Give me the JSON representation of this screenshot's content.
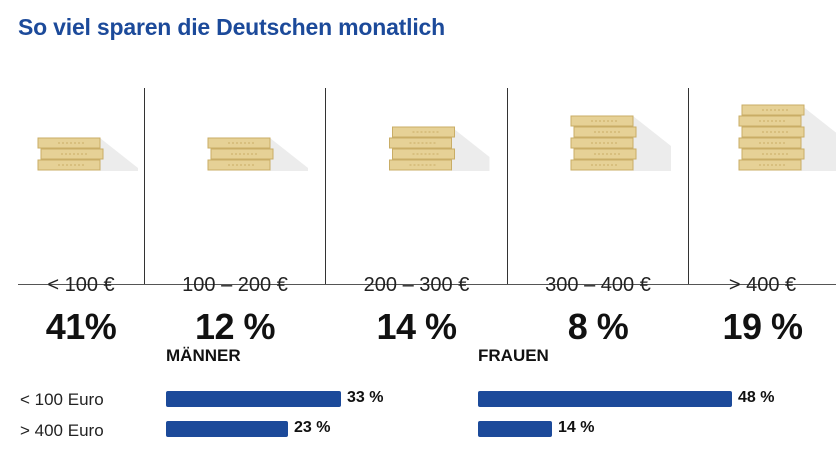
{
  "title": "So viel sparen die Deutschen monatlich",
  "chart_data": [
    {
      "type": "bar",
      "categories": [
        "< 100 €",
        "100 – 200 €",
        "200 – 300 €",
        "300 – 400 €",
        "> 400 €"
      ],
      "values": [
        41,
        12,
        14,
        8,
        19
      ],
      "labels": [
        "41%",
        "12 %",
        "14 %",
        "8 %",
        "19 %"
      ]
    },
    {
      "type": "bar",
      "categories": [
        "< 100 Euro",
        "> 400 Euro"
      ],
      "series": [
        {
          "name": "MÄNNER",
          "values": [
            33,
            23
          ],
          "labels": [
            "33 %",
            "23 %"
          ]
        },
        {
          "name": "FRAUEN",
          "values": [
            48,
            14
          ],
          "labels": [
            "48 %",
            "14 %"
          ]
        }
      ]
    }
  ],
  "colors": {
    "bar": "#1c4a9a",
    "coin": "#e6d196",
    "coin_dark": "#c9ad66",
    "title": "#1c4a9a"
  },
  "icons": [
    "coin-stack-icon"
  ]
}
